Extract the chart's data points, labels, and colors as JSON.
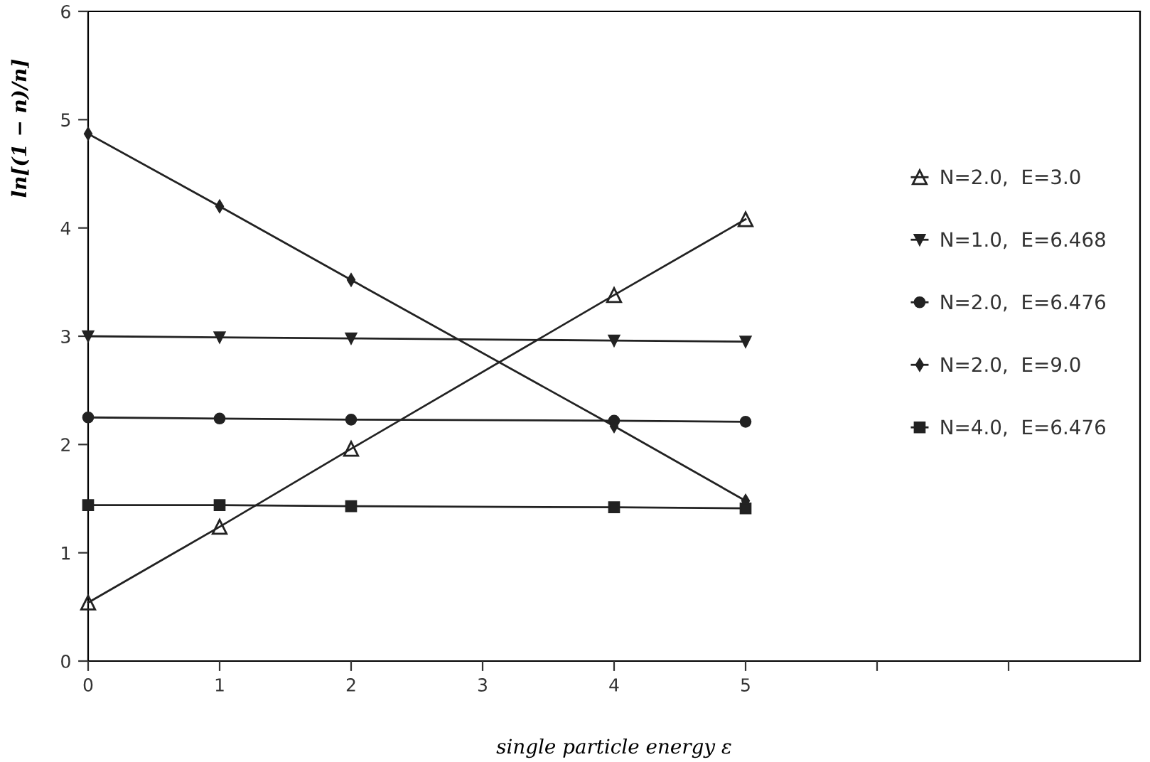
{
  "chart_data": {
    "type": "line",
    "xlabel": "single particle energy ε",
    "ylabel": "ln[(1 − n)/n]",
    "x": [
      0,
      1,
      2,
      4,
      5
    ],
    "series": [
      {
        "name": "N=2.0,  E=3.0",
        "color": "#222222",
        "marker": "triangle_open",
        "values": [
          0.54,
          1.24,
          1.96,
          3.38,
          4.08
        ]
      },
      {
        "name": "N=1.0,  E=6.468",
        "color": "#222222",
        "marker": "triangle_down",
        "values": [
          3.0,
          2.99,
          2.98,
          2.96,
          2.95
        ]
      },
      {
        "name": "N=2.0,  E=6.476",
        "color": "#222222",
        "marker": "circle",
        "values": [
          2.25,
          2.24,
          2.23,
          2.22,
          2.21
        ]
      },
      {
        "name": "N=2.0,  E=9.0",
        "color": "#222222",
        "marker": "diamond",
        "values": [
          4.87,
          4.2,
          3.52,
          2.17,
          1.48
        ]
      },
      {
        "name": "N=4.0,  E=6.476",
        "color": "#222222",
        "marker": "square",
        "values": [
          1.44,
          1.44,
          1.43,
          1.42,
          1.41
        ]
      }
    ],
    "xlim": [
      0,
      8
    ],
    "ylim": [
      0,
      6
    ],
    "xticks": [
      0,
      1,
      2,
      3,
      4,
      5,
      {
        "value": 6,
        "label": null
      },
      {
        "value": 7,
        "label": null
      }
    ],
    "yticks": [
      0,
      1,
      2,
      3,
      4,
      5,
      6
    ],
    "grid": false,
    "legend": "right",
    "line_style": "solid"
  }
}
